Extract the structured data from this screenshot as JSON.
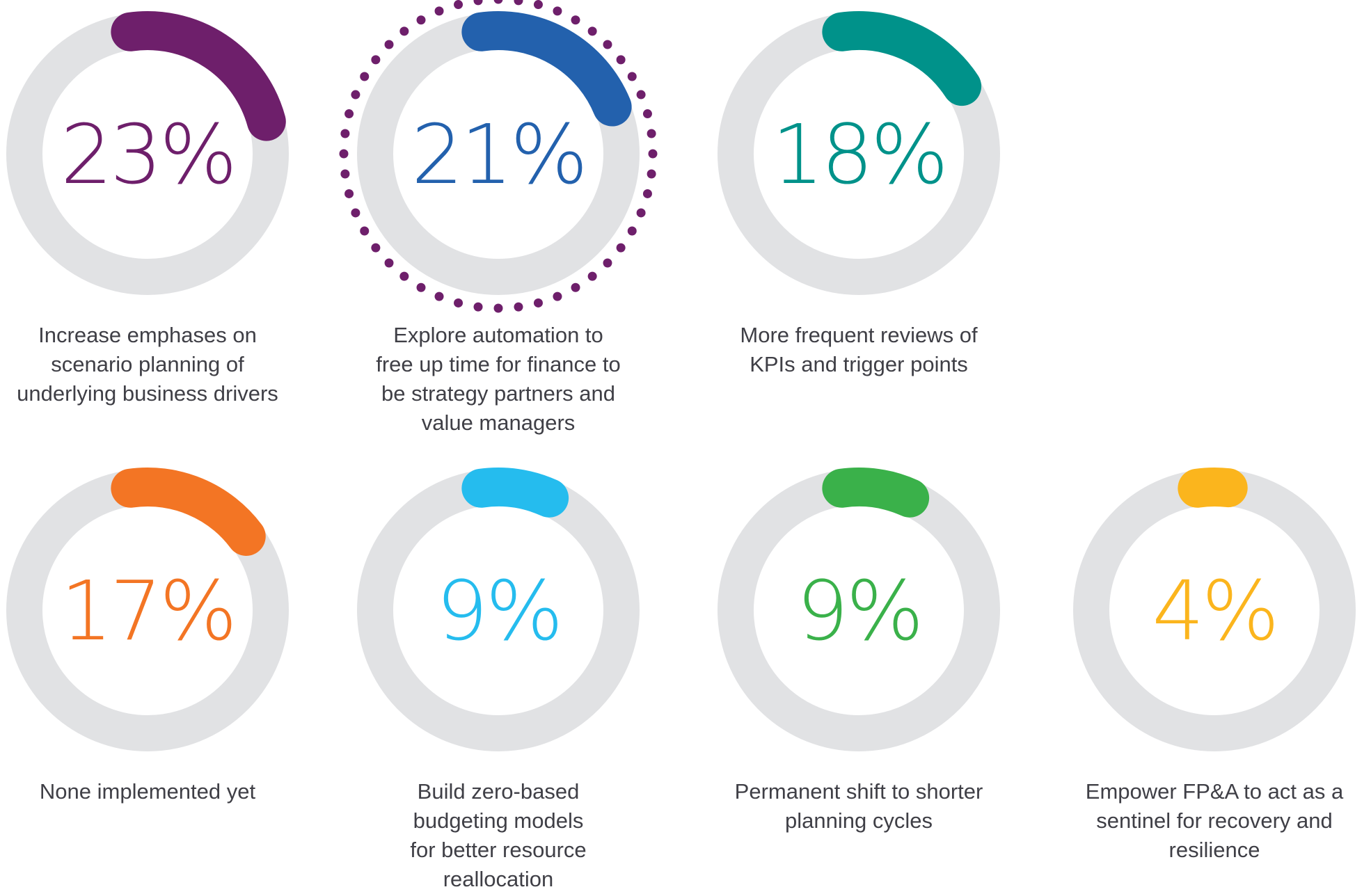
{
  "chart_data": {
    "type": "donut",
    "ring_color": "#e1e2e4",
    "items": [
      {
        "value": 23,
        "label": "23%",
        "color": "#6e1f6b",
        "caption": [
          "Increase emphases on",
          "scenario planning of",
          "underlying business drivers"
        ]
      },
      {
        "value": 21,
        "label": "21%",
        "color": "#2361ad",
        "caption": [
          "Explore automation to",
          "free up time for finance to",
          "be strategy partners and",
          "value managers"
        ],
        "highlighted": true
      },
      {
        "value": 18,
        "label": "18%",
        "color": "#00928a",
        "caption": [
          "More frequent reviews of",
          "KPIs and trigger points"
        ]
      },
      {
        "value": 17,
        "label": "17%",
        "color": "#f37524",
        "caption": [
          "None implemented yet"
        ]
      },
      {
        "value": 9,
        "label": "9%",
        "color": "#25bcee",
        "caption": [
          "Build zero-based",
          "budgeting models",
          "for better resource",
          "reallocation"
        ]
      },
      {
        "value": 9,
        "label": "9%",
        "color": "#3ab14a",
        "caption": [
          "Permanent shift to shorter",
          "planning cycles"
        ]
      },
      {
        "value": 4,
        "label": "4%",
        "color": "#fbb51d",
        "caption": [
          "Empower FP&A to act as a",
          "sentinel for recovery and",
          "resilience"
        ]
      }
    ]
  }
}
